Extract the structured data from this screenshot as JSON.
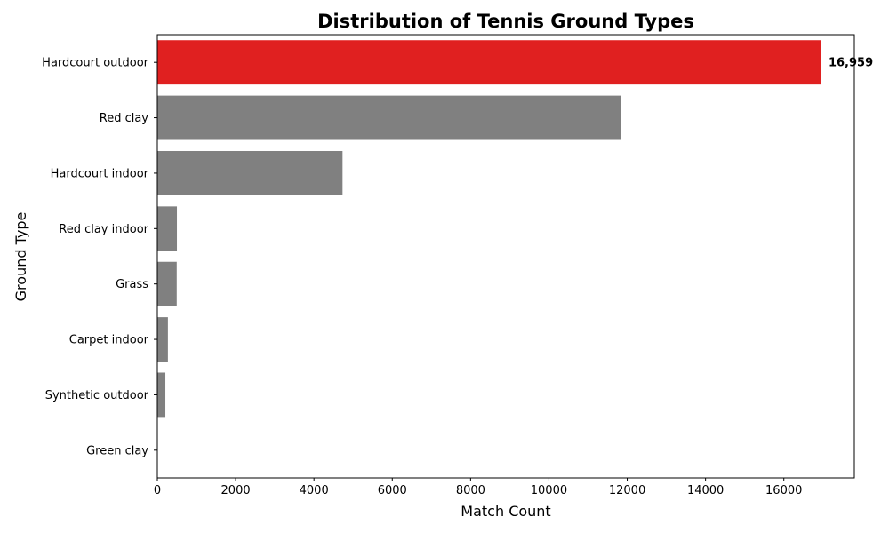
{
  "chart_data": {
    "type": "bar",
    "orientation": "horizontal",
    "title": "Distribution of Tennis Ground Types",
    "xlabel": "Match Count",
    "ylabel": "Ground Type",
    "categories": [
      "Hardcourt outdoor",
      "Red clay",
      "Hardcourt indoor",
      "Red clay indoor",
      "Grass",
      "Carpet indoor",
      "Synthetic outdoor",
      "Green clay"
    ],
    "values": [
      16959,
      11850,
      4730,
      500,
      495,
      270,
      205,
      8
    ],
    "xlim": [
      0,
      17800
    ],
    "xticks": [
      0,
      2000,
      4000,
      6000,
      8000,
      10000,
      12000,
      14000,
      16000
    ],
    "xtick_labels": [
      "0",
      "2000",
      "4000",
      "6000",
      "8000",
      "10000",
      "12000",
      "14000",
      "16000"
    ],
    "highlight_index": 0,
    "highlight_label": "16,959",
    "colors": {
      "highlight": "#e02020",
      "default": "#808080"
    },
    "grid": false
  }
}
